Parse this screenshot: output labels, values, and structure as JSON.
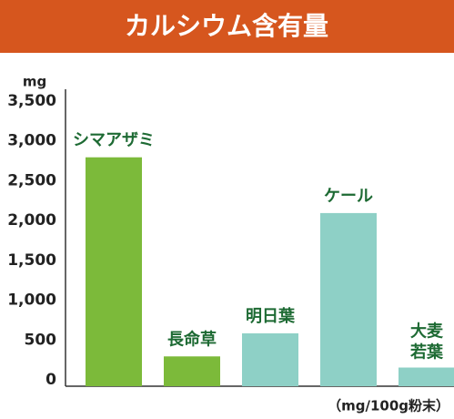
{
  "chart_data": {
    "type": "bar",
    "title": "カルシウム含有量",
    "y_unit": "mg",
    "note": "（mg/100g粉末）",
    "categories": [
      "シマアザミ",
      "長命草",
      "明日葉",
      "ケール",
      [
        "大麦",
        "若葉"
      ]
    ],
    "values": [
      2840,
      340,
      630,
      2140,
      200
    ],
    "colors": [
      "#7cba3a",
      "#7cba3a",
      "#8ed0c6",
      "#8ed0c6",
      "#8ed0c6"
    ],
    "ylim": [
      0,
      3500
    ],
    "yticks": [
      0,
      500,
      {
        "value": 1000,
        "label": "1,000"
      },
      {
        "value": 1500,
        "label": "1,500"
      },
      {
        "value": 2000,
        "label": "2,000"
      },
      {
        "value": 2500,
        "label": "2,500"
      },
      {
        "value": 3000,
        "label": "3,000"
      },
      {
        "value": 3500,
        "label": "3,500"
      }
    ],
    "grid": false
  }
}
